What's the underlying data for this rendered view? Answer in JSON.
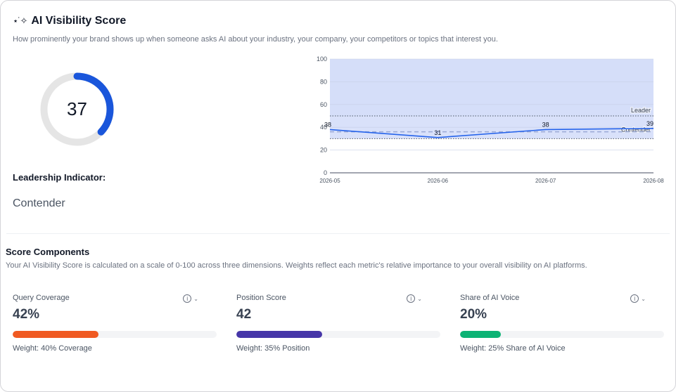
{
  "header": {
    "title": "AI Visibility Score",
    "subtitle": "How prominently your brand shows up when someone asks AI about your industry, your company, your competitors or topics that interest you."
  },
  "score": {
    "value": "37",
    "fraction": 0.37,
    "color": "#1a56db"
  },
  "leadership": {
    "label": "Leadership Indicator:",
    "value": "Contender"
  },
  "chart_data": {
    "type": "line",
    "x": [
      "2026-05",
      "2026-06",
      "2026-07",
      "2026-08"
    ],
    "series": [
      {
        "values": [
          38,
          31,
          38,
          39
        ]
      }
    ],
    "data_labels": [
      "38",
      "31",
      "38",
      "39"
    ],
    "ylim": [
      0,
      100
    ],
    "yticks": [
      "0",
      "20",
      "40",
      "60",
      "80",
      "100"
    ],
    "bands": [
      {
        "name": "Leader",
        "from": 50,
        "to": 100
      },
      {
        "name": "Contender",
        "from": 30,
        "to": 50
      }
    ],
    "reference_line": 36,
    "colors": {
      "line": "#2563eb",
      "band": "#d5def9",
      "reference": "#9aa9d6"
    }
  },
  "components": {
    "title": "Score Components",
    "description": "Your AI Visibility Score is calculated on a scale of 0-100 across three dimensions. Weights reflect each metric's relative importance to your overall visibility on AI platforms.",
    "items": [
      {
        "label": "Query Coverage",
        "value": "42%",
        "fraction": 0.42,
        "color": "#f05a22",
        "weight": "Weight: 40% Coverage"
      },
      {
        "label": "Position Score",
        "value": "42",
        "fraction": 0.42,
        "color": "#4636a8",
        "weight": "Weight: 35% Position"
      },
      {
        "label": "Share of AI Voice",
        "value": "20%",
        "fraction": 0.2,
        "color": "#0db375",
        "weight": "Weight: 25% Share of AI Voice"
      }
    ]
  },
  "icons": {
    "sparkle": "sparkle-icon",
    "info": "info-icon",
    "chevron": "chevron-down-icon"
  }
}
